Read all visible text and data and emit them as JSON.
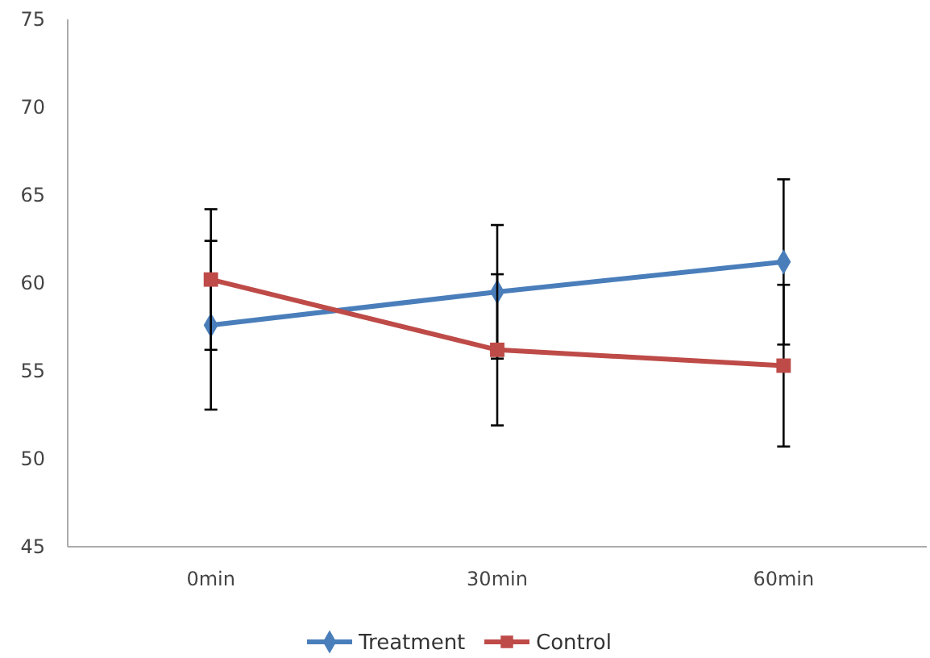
{
  "chart_data": {
    "type": "line",
    "categories": [
      "0min",
      "30min",
      "60min"
    ],
    "series": [
      {
        "name": "Treatment",
        "color": "#4a7ebb",
        "marker": "diamond",
        "values": [
          57.6,
          59.5,
          61.2
        ],
        "errors": [
          4.8,
          3.8,
          4.7
        ]
      },
      {
        "name": "Control",
        "color": "#be4b48",
        "marker": "square",
        "values": [
          60.2,
          56.2,
          55.3
        ],
        "errors": [
          4.0,
          4.3,
          4.6
        ]
      }
    ],
    "ylim": [
      45,
      75
    ],
    "yticks": [
      45,
      50,
      55,
      60,
      65,
      70,
      75
    ],
    "grid": false,
    "legend": "bottom",
    "line_style": "solid"
  }
}
